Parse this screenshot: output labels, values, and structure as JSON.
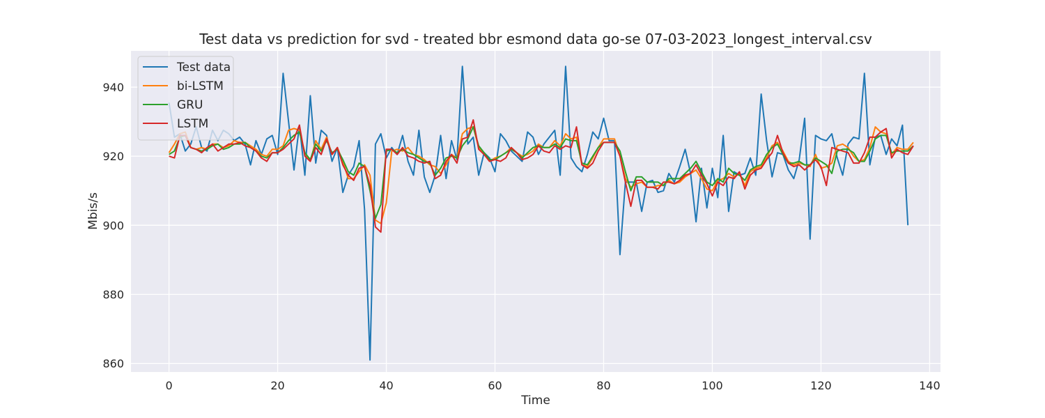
{
  "chart_data": {
    "type": "line",
    "title": "Test data vs prediction for svd - treated bbr esmond data go-se 07-03-2023_longest_interval.csv",
    "xlabel": "Time",
    "ylabel": "Mbis/s",
    "xlim": [
      -7,
      142
    ],
    "ylim": [
      857.5,
      950.5
    ],
    "xticks": [
      0,
      20,
      40,
      60,
      80,
      100,
      120,
      140
    ],
    "yticks": [
      860,
      880,
      900,
      920,
      940
    ],
    "grid": true,
    "legend_position": "top-left",
    "series": [
      {
        "name": "Test data",
        "color": "#1f77b4",
        "values": [
          935.5,
          925.5,
          926.5,
          921.5,
          923.5,
          928.5,
          922.5,
          921.5,
          927.5,
          924.5,
          927.5,
          926.5,
          924.5,
          925.5,
          923.5,
          917.5,
          924.5,
          920.5,
          925.0,
          926.0,
          920.5,
          944.0,
          930.0,
          916.0,
          929.0,
          914.5,
          937.5,
          918.0,
          927.5,
          926.0,
          918.5,
          922.5,
          909.5,
          914.5,
          917.0,
          924.5,
          904.5,
          861.0,
          923.5,
          926.5,
          919.5,
          922.5,
          920.5,
          926.0,
          918.5,
          914.5,
          927.5,
          914.0,
          909.5,
          914.5,
          926.0,
          913.5,
          924.5,
          919.0,
          946.0,
          923.5,
          925.5,
          914.5,
          921.0,
          919.5,
          915.5,
          926.5,
          924.5,
          921.5,
          920.0,
          918.5,
          927.0,
          925.5,
          920.5,
          923.5,
          925.5,
          927.5,
          914.5,
          946.0,
          919.5,
          917.0,
          915.5,
          920.5,
          927.0,
          925.0,
          931.0,
          924.5,
          924.5,
          891.5,
          912.5,
          912.5,
          912.5,
          904.0,
          912.5,
          913.0,
          909.5,
          910.0,
          915.0,
          912.5,
          917.0,
          922.0,
          915.0,
          901.0,
          916.5,
          905.0,
          916.5,
          908.0,
          926.0,
          904.0,
          915.5,
          914.5,
          915.0,
          919.5,
          914.5,
          938.0,
          924.5,
          914.0,
          921.0,
          920.5,
          916.0,
          913.5,
          919.0,
          931.0,
          896.0,
          926.0,
          925.0,
          924.5,
          926.5,
          919.5,
          914.5,
          923.5,
          925.5,
          925.0,
          944.0,
          917.5,
          925.5,
          926.0,
          920.5,
          925.0,
          923.0,
          929.0,
          900.0
        ]
      },
      {
        "name": "bi-LSTM",
        "color": "#ff7f0e",
        "values": [
          921.0,
          923.5,
          926.5,
          927.0,
          922.5,
          922.0,
          922.5,
          922.0,
          923.5,
          923.5,
          922.5,
          923.0,
          924.5,
          924.0,
          924.0,
          923.0,
          922.0,
          920.5,
          920.0,
          922.0,
          922.0,
          923.0,
          927.5,
          928.0,
          927.5,
          921.0,
          918.5,
          924.5,
          922.0,
          925.5,
          920.5,
          922.5,
          918.5,
          913.5,
          913.5,
          915.5,
          917.5,
          914.5,
          901.5,
          900.5,
          906.5,
          921.5,
          922.0,
          921.5,
          922.5,
          920.5,
          920.0,
          919.0,
          917.5,
          917.0,
          915.0,
          917.5,
          920.5,
          919.5,
          926.5,
          928.0,
          928.5,
          922.5,
          921.0,
          918.5,
          919.5,
          920.0,
          921.0,
          922.5,
          921.0,
          920.0,
          920.5,
          921.5,
          923.5,
          922.5,
          922.5,
          924.5,
          923.0,
          926.5,
          925.0,
          925.5,
          917.5,
          917.0,
          919.5,
          922.5,
          925.0,
          925.0,
          925.0,
          920.0,
          913.5,
          911.0,
          912.0,
          912.5,
          911.0,
          911.0,
          911.5,
          911.5,
          913.0,
          912.0,
          912.5,
          914.0,
          915.0,
          916.0,
          913.5,
          910.5,
          910.0,
          913.0,
          913.5,
          915.0,
          914.0,
          915.0,
          911.5,
          915.5,
          916.5,
          917.0,
          919.5,
          923.0,
          924.0,
          921.5,
          918.5,
          917.5,
          918.0,
          917.5,
          917.0,
          920.5,
          916.5,
          917.0,
          918.0,
          923.0,
          923.5,
          922.5,
          920.0,
          918.5,
          919.0,
          922.5,
          928.5,
          927.0,
          926.5,
          920.5,
          922.5,
          922.0,
          922.0,
          924.0
        ]
      },
      {
        "name": "GRU",
        "color": "#2ca02c",
        "values": [
          920.5,
          921.5,
          925.5,
          926.0,
          922.5,
          922.0,
          921.5,
          922.0,
          923.0,
          923.5,
          922.0,
          922.5,
          923.5,
          923.5,
          924.0,
          922.5,
          921.5,
          920.0,
          919.5,
          921.0,
          921.0,
          922.5,
          924.5,
          926.0,
          927.0,
          921.0,
          919.0,
          923.5,
          921.5,
          924.5,
          921.0,
          922.0,
          919.0,
          915.5,
          914.5,
          918.0,
          917.0,
          910.0,
          902.0,
          906.0,
          921.5,
          922.0,
          921.0,
          922.0,
          921.0,
          920.5,
          919.5,
          918.5,
          918.0,
          914.5,
          916.5,
          919.5,
          920.0,
          919.5,
          923.0,
          925.0,
          928.5,
          923.0,
          921.0,
          919.0,
          919.0,
          920.0,
          921.0,
          922.0,
          921.0,
          919.5,
          921.0,
          922.5,
          923.0,
          922.5,
          922.5,
          923.5,
          922.5,
          925.0,
          924.5,
          924.5,
          918.0,
          917.5,
          920.0,
          922.5,
          924.0,
          924.0,
          924.0,
          921.5,
          915.5,
          910.0,
          914.0,
          914.0,
          912.5,
          912.5,
          912.5,
          911.5,
          913.5,
          913.5,
          913.5,
          915.0,
          916.5,
          918.5,
          915.5,
          912.5,
          911.5,
          913.5,
          912.5,
          916.5,
          915.0,
          914.5,
          913.0,
          916.0,
          917.0,
          917.5,
          920.5,
          922.5,
          923.5,
          920.5,
          918.0,
          918.0,
          918.5,
          917.5,
          917.5,
          919.5,
          918.5,
          917.5,
          915.0,
          921.5,
          922.0,
          922.0,
          921.0,
          918.5,
          918.5,
          921.5,
          925.0,
          926.0,
          926.0,
          921.0,
          921.5,
          921.5,
          921.5,
          923.0
        ]
      },
      {
        "name": "LSTM",
        "color": "#d62728",
        "values": [
          920.0,
          919.5,
          926.0,
          926.0,
          922.5,
          922.0,
          921.0,
          922.5,
          923.5,
          921.5,
          922.5,
          923.5,
          923.5,
          924.0,
          923.0,
          922.5,
          921.5,
          919.5,
          918.5,
          921.0,
          921.0,
          922.0,
          923.5,
          925.0,
          929.0,
          920.0,
          918.5,
          922.5,
          920.5,
          925.0,
          920.5,
          922.5,
          917.5,
          914.5,
          913.0,
          916.5,
          917.0,
          911.5,
          899.5,
          898.0,
          922.0,
          922.0,
          920.5,
          922.5,
          920.0,
          919.5,
          918.5,
          918.0,
          918.5,
          913.5,
          914.5,
          918.5,
          920.5,
          918.0,
          925.0,
          925.5,
          930.5,
          922.0,
          920.5,
          918.5,
          919.0,
          918.5,
          919.5,
          922.5,
          921.0,
          919.0,
          919.5,
          920.5,
          923.0,
          921.5,
          921.0,
          923.0,
          922.0,
          923.0,
          922.5,
          928.5,
          917.5,
          916.5,
          918.0,
          921.5,
          924.0,
          924.0,
          924.0,
          920.0,
          912.5,
          905.5,
          913.0,
          913.0,
          911.0,
          911.0,
          910.5,
          912.5,
          912.5,
          912.0,
          913.0,
          914.5,
          915.0,
          917.5,
          914.5,
          912.0,
          908.5,
          912.5,
          911.5,
          914.0,
          913.5,
          915.5,
          910.5,
          914.5,
          916.0,
          916.5,
          919.0,
          921.0,
          926.0,
          921.0,
          918.0,
          917.0,
          917.5,
          916.0,
          917.5,
          919.0,
          917.0,
          911.5,
          922.5,
          922.0,
          921.5,
          921.0,
          918.0,
          918.0,
          921.0,
          925.5,
          925.5,
          927.0,
          928.0,
          919.5,
          922.0,
          921.0,
          920.5,
          923.0
        ]
      }
    ]
  }
}
